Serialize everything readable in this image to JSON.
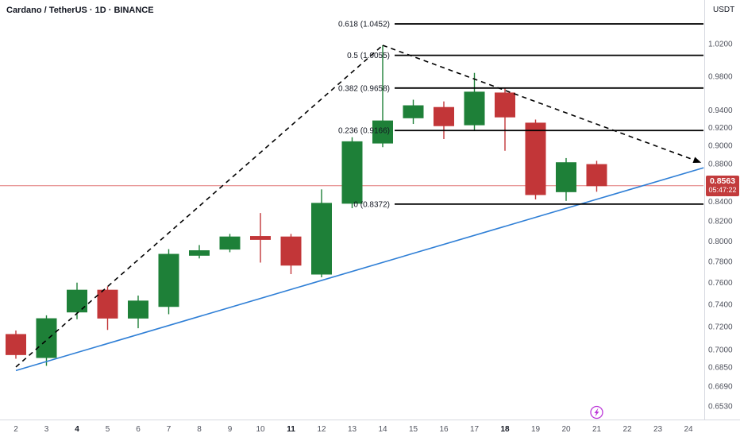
{
  "header": {
    "symbol_title": "Cardano / TetherUS · 1D · BINANCE"
  },
  "price_axis": {
    "currency_label": "USDT",
    "labels": [
      "1.0200",
      "0.9800",
      "0.9400",
      "0.9200",
      "0.9000",
      "0.8800",
      "0.8400",
      "0.8200",
      "0.8000",
      "0.7800",
      "0.7600",
      "0.7400",
      "0.7200",
      "0.7000",
      "0.6850",
      "0.6690",
      "0.6530"
    ],
    "last_price": {
      "value": "0.8563",
      "countdown": "05:47:22",
      "color": "#c23b3c"
    }
  },
  "time_axis": {
    "labels": [
      {
        "text": "2",
        "bold": false
      },
      {
        "text": "3",
        "bold": false
      },
      {
        "text": "4",
        "bold": true
      },
      {
        "text": "5",
        "bold": false
      },
      {
        "text": "6",
        "bold": false
      },
      {
        "text": "7",
        "bold": false
      },
      {
        "text": "8",
        "bold": false
      },
      {
        "text": "9",
        "bold": false
      },
      {
        "text": "10",
        "bold": false
      },
      {
        "text": "11",
        "bold": true
      },
      {
        "text": "12",
        "bold": false
      },
      {
        "text": "13",
        "bold": false
      },
      {
        "text": "14",
        "bold": false
      },
      {
        "text": "15",
        "bold": false
      },
      {
        "text": "16",
        "bold": false
      },
      {
        "text": "17",
        "bold": false
      },
      {
        "text": "18",
        "bold": true
      },
      {
        "text": "19",
        "bold": false
      },
      {
        "text": "20",
        "bold": false
      },
      {
        "text": "21",
        "bold": false
      },
      {
        "text": "22",
        "bold": false
      },
      {
        "text": "23",
        "bold": false
      },
      {
        "text": "24",
        "bold": false
      }
    ],
    "event_marker": {
      "date": 21,
      "icon": "lightning-icon",
      "color": "#bb37d8"
    }
  },
  "chart_data": {
    "type": "candlestick",
    "title": "Cardano / TetherUS · 1D · BINANCE",
    "price_scale": "log",
    "visible_price_range": [
      0.645,
      1.055
    ],
    "colors": {
      "up": "#1e8038",
      "down": "#c23638"
    },
    "candles": [
      {
        "date": 2,
        "open": 0.713,
        "high": 0.7165,
        "low": 0.692,
        "close": 0.6955
      },
      {
        "date": 3,
        "open": 0.693,
        "high": 0.73,
        "low": 0.686,
        "close": 0.727
      },
      {
        "date": 4,
        "open": 0.733,
        "high": 0.76,
        "low": 0.7265,
        "close": 0.753
      },
      {
        "date": 5,
        "open": 0.753,
        "high": 0.7565,
        "low": 0.717,
        "close": 0.7275
      },
      {
        "date": 6,
        "open": 0.7275,
        "high": 0.748,
        "low": 0.7185,
        "close": 0.743
      },
      {
        "date": 7,
        "open": 0.738,
        "high": 0.792,
        "low": 0.731,
        "close": 0.787
      },
      {
        "date": 8,
        "open": 0.786,
        "high": 0.796,
        "low": 0.783,
        "close": 0.7905
      },
      {
        "date": 9,
        "open": 0.792,
        "high": 0.807,
        "low": 0.789,
        "close": 0.804
      },
      {
        "date": 10,
        "open": 0.8045,
        "high": 0.828,
        "low": 0.779,
        "close": 0.8015
      },
      {
        "date": 11,
        "open": 0.804,
        "high": 0.807,
        "low": 0.768,
        "close": 0.7765
      },
      {
        "date": 12,
        "open": 0.768,
        "high": 0.8525,
        "low": 0.765,
        "close": 0.838
      },
      {
        "date": 13,
        "open": 0.838,
        "high": 0.909,
        "low": 0.833,
        "close": 0.904
      },
      {
        "date": 14,
        "open": 0.9025,
        "high": 1.018,
        "low": 0.898,
        "close": 0.9275
      },
      {
        "date": 15,
        "open": 0.931,
        "high": 0.952,
        "low": 0.924,
        "close": 0.945
      },
      {
        "date": 16,
        "open": 0.943,
        "high": 0.95,
        "low": 0.907,
        "close": 0.922
      },
      {
        "date": 17,
        "open": 0.923,
        "high": 0.984,
        "low": 0.917,
        "close": 0.961
      },
      {
        "date": 18,
        "open": 0.96,
        "high": 0.9665,
        "low": 0.894,
        "close": 0.932
      },
      {
        "date": 19,
        "open": 0.925,
        "high": 0.929,
        "low": 0.842,
        "close": 0.847
      },
      {
        "date": 20,
        "open": 0.85,
        "high": 0.886,
        "low": 0.8405,
        "close": 0.881
      },
      {
        "date": 21,
        "open": 0.879,
        "high": 0.883,
        "low": 0.85,
        "close": 0.8563
      }
    ],
    "fib_retracement": {
      "color": "#000000",
      "levels": [
        {
          "label": "0.618 (1.0452)",
          "price": 1.0452
        },
        {
          "label": "0.5 (1.0055)",
          "price": 1.0055
        },
        {
          "label": "0.382 (0.9658)",
          "price": 0.9658
        },
        {
          "label": "0.236 (0.9166)",
          "price": 0.9166
        },
        {
          "label": "0 (0.8372)",
          "price": 0.8372
        }
      ]
    },
    "trendlines": [
      {
        "name": "ascending-dashed-trendline",
        "style": "dashed",
        "color": "#000000",
        "arrow_end": false,
        "points": [
          {
            "date": 2,
            "price": 0.685
          },
          {
            "date": 14,
            "price": 1.018
          }
        ]
      },
      {
        "name": "descending-dashed-trendline",
        "style": "dashed",
        "color": "#000000",
        "arrow_end": true,
        "points": [
          {
            "date": 14,
            "price": 1.018
          },
          {
            "date": 24.3,
            "price": 0.8825
          }
        ]
      },
      {
        "name": "ascending-support-trendline",
        "style": "solid",
        "color": "#2f7fd6",
        "arrow_end": false,
        "points": [
          {
            "date": 2,
            "price": 0.682
          },
          {
            "date": 24.5,
            "price": 0.8755
          }
        ]
      }
    ],
    "price_line": {
      "price": 0.8563,
      "color": "#d64949"
    }
  }
}
